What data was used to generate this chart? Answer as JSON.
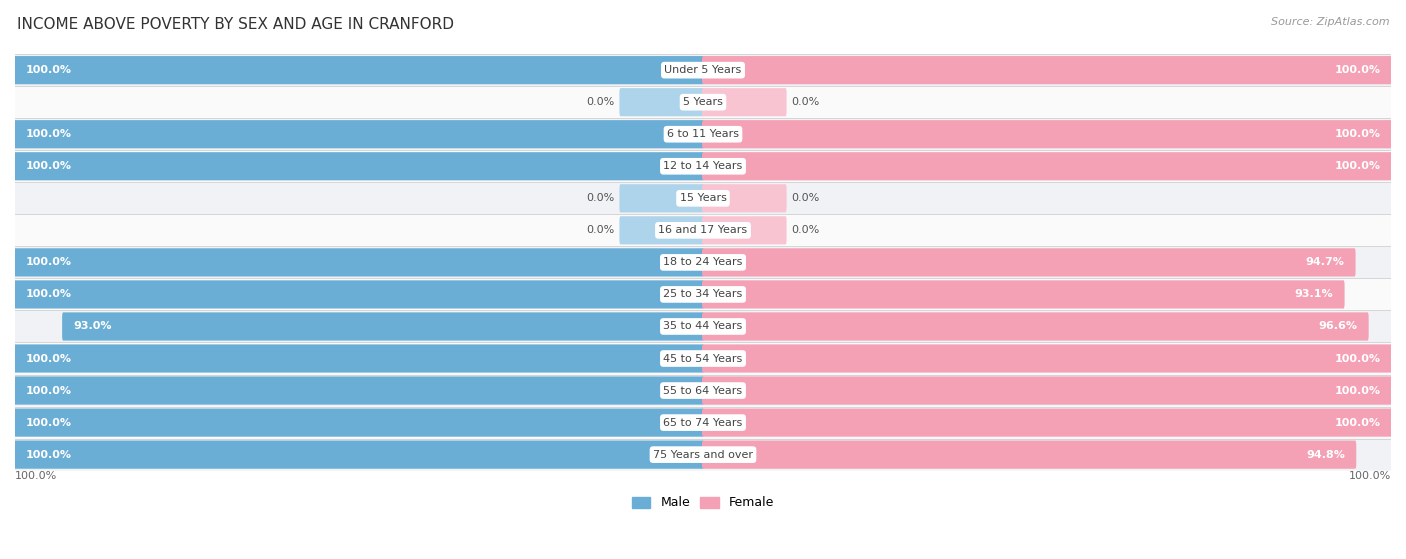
{
  "title": "INCOME ABOVE POVERTY BY SEX AND AGE IN CRANFORD",
  "source": "Source: ZipAtlas.com",
  "categories": [
    "Under 5 Years",
    "5 Years",
    "6 to 11 Years",
    "12 to 14 Years",
    "15 Years",
    "16 and 17 Years",
    "18 to 24 Years",
    "25 to 34 Years",
    "35 to 44 Years",
    "45 to 54 Years",
    "55 to 64 Years",
    "65 to 74 Years",
    "75 Years and over"
  ],
  "male_values": [
    100.0,
    0.0,
    100.0,
    100.0,
    0.0,
    0.0,
    100.0,
    100.0,
    93.0,
    100.0,
    100.0,
    100.0,
    100.0
  ],
  "female_values": [
    100.0,
    0.0,
    100.0,
    100.0,
    0.0,
    0.0,
    94.7,
    93.1,
    96.6,
    100.0,
    100.0,
    100.0,
    94.8
  ],
  "male_color": "#6aaed6",
  "female_color": "#f4a0b5",
  "male_color_light": "#aed4eb",
  "female_color_light": "#f9c4d2",
  "bar_height": 0.58,
  "label_fontsize": 8.0,
  "title_fontsize": 11,
  "zero_bar_width": 12.0
}
